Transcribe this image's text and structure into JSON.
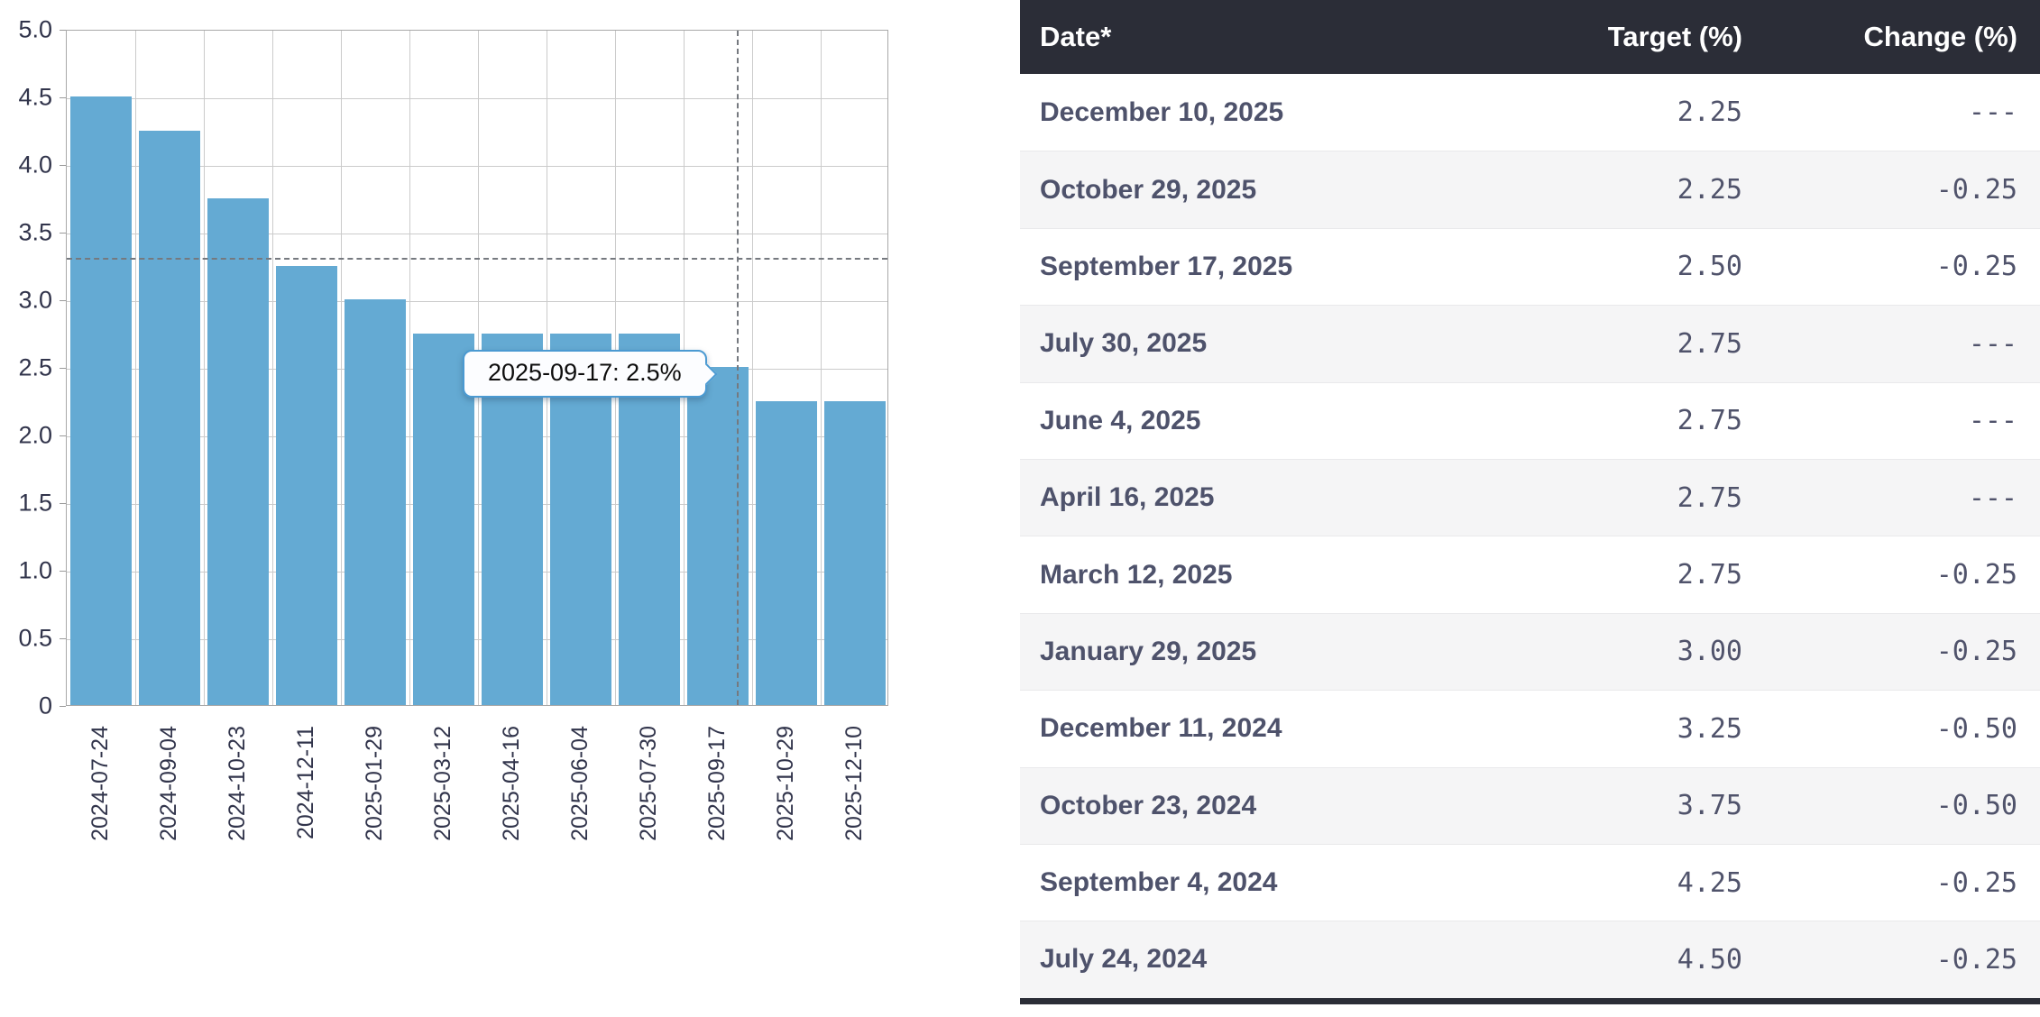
{
  "chart_data": {
    "type": "bar",
    "x": [
      "2024-07-24",
      "2024-09-04",
      "2024-10-23",
      "2024-12-11",
      "2025-01-29",
      "2025-03-12",
      "2025-04-16",
      "2025-06-04",
      "2025-07-30",
      "2025-09-17",
      "2025-10-29",
      "2025-12-10"
    ],
    "values": [
      4.5,
      4.25,
      3.75,
      3.25,
      3.0,
      2.75,
      2.75,
      2.75,
      2.75,
      2.5,
      2.25,
      2.25
    ],
    "title": "",
    "xlabel": "",
    "ylabel": "",
    "ylim": [
      0,
      5
    ],
    "ytick_step": 0.5,
    "ytick_labels": [
      "5.0",
      "4.5",
      "4.0",
      "3.5",
      "3.0",
      "2.5",
      "2.0",
      "1.5",
      "1.0",
      "0.5",
      "0"
    ],
    "grid": "on",
    "bar_color": "#64aad3",
    "crosshair": {
      "category": "2025-09-17",
      "category_index": 9,
      "y_value": 3.32
    },
    "tooltip": {
      "text": "2025-09-17: 2.5%",
      "date": "2025-09-17",
      "value": "2.5%"
    }
  },
  "table": {
    "columns": [
      "Date*",
      "Target (%)",
      "Change (%)"
    ],
    "rows": [
      {
        "date": "December 10, 2025",
        "target": "2.25",
        "change": "---"
      },
      {
        "date": "October 29, 2025",
        "target": "2.25",
        "change": "-0.25"
      },
      {
        "date": "September 17, 2025",
        "target": "2.50",
        "change": "-0.25"
      },
      {
        "date": "July 30, 2025",
        "target": "2.75",
        "change": "---"
      },
      {
        "date": "June 4, 2025",
        "target": "2.75",
        "change": "---"
      },
      {
        "date": "April 16, 2025",
        "target": "2.75",
        "change": "---"
      },
      {
        "date": "March 12, 2025",
        "target": "2.75",
        "change": "-0.25"
      },
      {
        "date": "January 29, 2025",
        "target": "3.00",
        "change": "-0.25"
      },
      {
        "date": "December 11, 2024",
        "target": "3.25",
        "change": "-0.50"
      },
      {
        "date": "October 23, 2024",
        "target": "3.75",
        "change": "-0.50"
      },
      {
        "date": "September 4, 2024",
        "target": "4.25",
        "change": "-0.25"
      },
      {
        "date": "July 24, 2024",
        "target": "4.50",
        "change": "-0.25"
      }
    ]
  },
  "colors": {
    "bar": "#64aad3",
    "header_bg": "#2b2d37",
    "header_text": "#ffffff",
    "row_alt_bg": "#f5f5f6",
    "table_text": "#4e526b",
    "axis_text": "#31344b",
    "grid_line": "#cbcbcb",
    "crosshair": "#75797f",
    "tooltip_border": "#4b9ad2"
  }
}
